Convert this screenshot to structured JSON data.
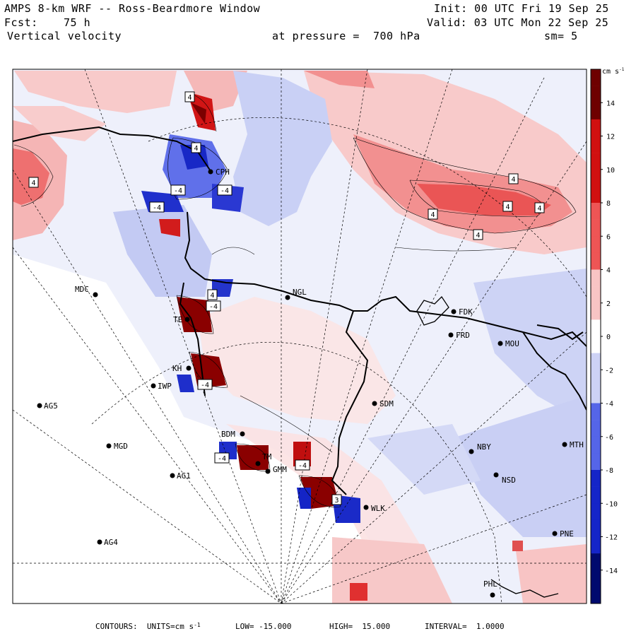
{
  "header": {
    "title": "AMPS 8-km WRF -- Ross-Beardmore Window",
    "init": "Init: 00 UTC Fri 19 Sep 25",
    "fcst_label": "Fcst:",
    "fcst_value": "75 h",
    "valid": "Valid: 03 UTC Mon 22 Sep 25",
    "field": "Vertical velocity",
    "pressure": "at pressure =  700 hPa",
    "smooth": "sm= 5"
  },
  "colorbar": {
    "units": "cm s",
    "units_exp": "-1",
    "ticks": [
      "14",
      "12",
      "10",
      "8",
      "6",
      "4",
      "2",
      "0",
      "-2",
      "-4",
      "-6",
      "-8",
      "-10",
      "-12",
      "-14"
    ],
    "colors": {
      "pos_max": "#6e0000",
      "pos_high": "#d11010",
      "pos_mid": "#ee5555",
      "pos_low": "#f8c4c4",
      "zero": "#ffffff",
      "neg_low": "#cdd2f5",
      "neg_mid": "#5565e8",
      "neg_high": "#1525c8",
      "neg_max": "#000a6e"
    }
  },
  "stations": [
    {
      "id": "CPH"
    },
    {
      "id": "NGL"
    },
    {
      "id": "MDC"
    },
    {
      "id": "FDK"
    },
    {
      "id": "FRD"
    },
    {
      "id": "MOU"
    },
    {
      "id": "SDM"
    },
    {
      "id": "AG5"
    },
    {
      "id": "MGD"
    },
    {
      "id": "NBY"
    },
    {
      "id": "MTH"
    },
    {
      "id": "AG1"
    },
    {
      "id": "NSD"
    },
    {
      "id": "AG4"
    },
    {
      "id": "PNE"
    },
    {
      "id": "PHL"
    },
    {
      "id": "BDM"
    },
    {
      "id": "TM"
    },
    {
      "id": "GMM"
    },
    {
      "id": "WLK"
    },
    {
      "id": "IWP"
    },
    {
      "id": "KH"
    },
    {
      "id": "TE"
    }
  ],
  "contour_labels": [
    "4",
    "4",
    "4",
    "4",
    "4",
    "4",
    "4",
    "4",
    "-4",
    "-4",
    "-4",
    "-4",
    "-4",
    "-4",
    "-4",
    "3",
    "4"
  ],
  "footer": {
    "contours_label": "CONTOURS:  UNITS=cm s",
    "units_exp": "-1",
    "low": "LOW= -15.000",
    "high": "HIGH=  15.000",
    "interval": "INTERVAL=  1.0000"
  }
}
